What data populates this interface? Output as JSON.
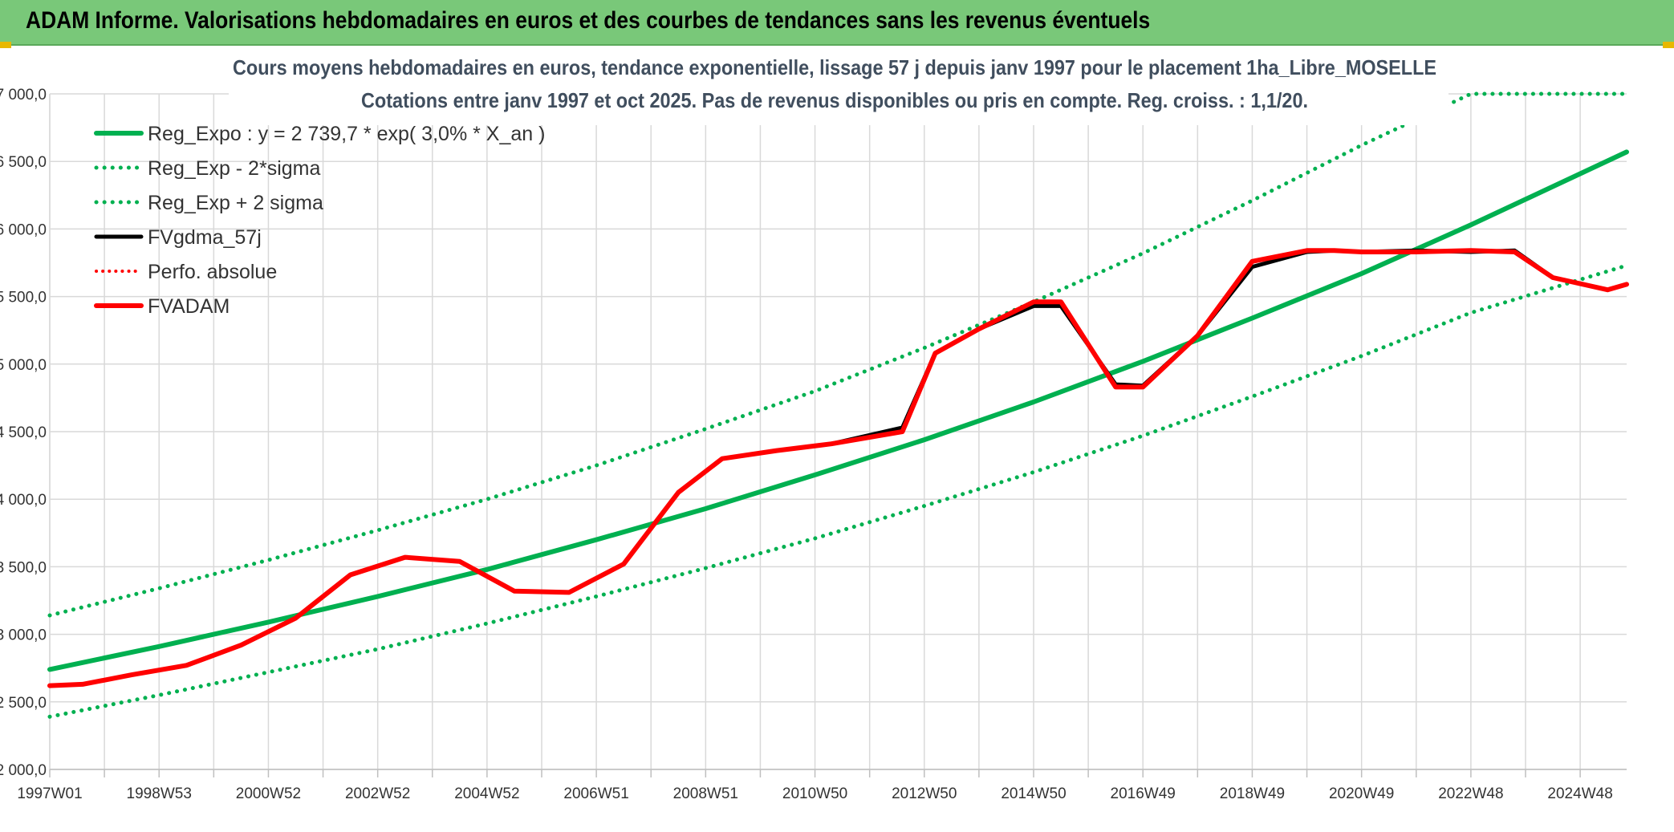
{
  "header": {
    "title": "ADAM Informe. Valorisations hebdomadaires en euros et des courbes de tendances sans les revenus éventuels"
  },
  "colors": {
    "banner": "#79c879",
    "green": "#00b050",
    "red": "#ff0000",
    "black": "#000000"
  },
  "chart_data": {
    "type": "line",
    "title": "Cours moyens hebdomadaires en euros, tendance exponentielle, lissage 57 j depuis janv 1997 pour le placement 1ha_Libre_MOSELLE",
    "subtitle": "Cotations entre janv 1997 et oct 2025. Pas de revenus disponibles ou pris en compte. Reg. croiss. : 1,1/20.",
    "xlabel": "",
    "ylabel": "",
    "ylim": [
      2000,
      7000
    ],
    "xlim": [
      1997.0,
      2025.85
    ],
    "grid": true,
    "legend_position": "top-left",
    "y_ticks": [
      {
        "value": 2000,
        "label": "2 000,0"
      },
      {
        "value": 2500,
        "label": "2 500,0"
      },
      {
        "value": 3000,
        "label": "3 000,0"
      },
      {
        "value": 3500,
        "label": "3 500,0"
      },
      {
        "value": 4000,
        "label": "4 000,0"
      },
      {
        "value": 4500,
        "label": "4 500,0"
      },
      {
        "value": 5000,
        "label": "5 000,0"
      },
      {
        "value": 5500,
        "label": "5 500,0"
      },
      {
        "value": 6000,
        "label": "6 000,0"
      },
      {
        "value": 6500,
        "label": "6 500,0"
      },
      {
        "value": 7000,
        "label": "7 000,0"
      }
    ],
    "x_ticks": [
      {
        "x": 1997.0,
        "label": "1997W01"
      },
      {
        "x": 1999.0,
        "label": "1998W53"
      },
      {
        "x": 2001.0,
        "label": "2000W52"
      },
      {
        "x": 2003.0,
        "label": "2002W52"
      },
      {
        "x": 2005.0,
        "label": "2004W52"
      },
      {
        "x": 2007.0,
        "label": "2006W51"
      },
      {
        "x": 2009.0,
        "label": "2008W51"
      },
      {
        "x": 2011.0,
        "label": "2010W50"
      },
      {
        "x": 2013.0,
        "label": "2012W50"
      },
      {
        "x": 2015.0,
        "label": "2014W50"
      },
      {
        "x": 2017.0,
        "label": "2016W49"
      },
      {
        "x": 2019.0,
        "label": "2018W49"
      },
      {
        "x": 2021.0,
        "label": "2020W49"
      },
      {
        "x": 2023.0,
        "label": "2022W48"
      },
      {
        "x": 2025.0,
        "label": "2024W48"
      }
    ],
    "series": [
      {
        "name": "Reg_Expo : y = 2 739,7 * exp( 3,0% *  X_an )",
        "style": "solid",
        "color": "#00b050",
        "width": 6,
        "x": [
          1997.0,
          1999.0,
          2001.0,
          2003.0,
          2005.0,
          2007.0,
          2009.0,
          2011.0,
          2013.0,
          2015.0,
          2017.0,
          2019.0,
          2021.0,
          2023.0,
          2025.85
        ],
        "values": [
          2740,
          2910,
          3090,
          3280,
          3480,
          3700,
          3930,
          4180,
          4440,
          4720,
          5020,
          5340,
          5670,
          6030,
          6570
        ]
      },
      {
        "name": "Reg_Exp - 2*sigma",
        "style": "dotted",
        "color": "#00b050",
        "width": 5,
        "x": [
          1997.0,
          1999.0,
          2001.0,
          2003.0,
          2005.0,
          2007.0,
          2009.0,
          2011.0,
          2013.0,
          2015.0,
          2017.0,
          2019.0,
          2021.0,
          2023.0,
          2025.85
        ],
        "values": [
          2390,
          2550,
          2720,
          2890,
          3080,
          3280,
          3490,
          3710,
          3950,
          4200,
          4470,
          4760,
          5060,
          5380,
          5730
        ]
      },
      {
        "name": "Reg_Exp + 2 sigma",
        "style": "dotted",
        "color": "#00b050",
        "width": 5,
        "x": [
          1997.0,
          1999.0,
          2001.0,
          2003.0,
          2005.0,
          2007.0,
          2009.0,
          2011.0,
          2013.0,
          2015.0,
          2017.0,
          2019.0,
          2021.0,
          2023.0,
          2025.85
        ],
        "values": [
          3140,
          3340,
          3550,
          3770,
          4000,
          4250,
          4520,
          4800,
          5120,
          5460,
          5820,
          6210,
          6620,
          7000,
          7000
        ]
      },
      {
        "name": "FVgdma_57j",
        "style": "solid",
        "color": "#000000",
        "width": 5,
        "x": [
          1997.0,
          1997.6,
          1998.5,
          1999.5,
          2000.5,
          2001.5,
          2002.5,
          2003.5,
          2004.5,
          2005.5,
          2006.5,
          2007.5,
          2008.5,
          2009.3,
          2010.3,
          2011.3,
          2012.6,
          2013.2,
          2014.0,
          2015.0,
          2015.5,
          2016.5,
          2017.0,
          2018.0,
          2019.0,
          2020.0,
          2020.5,
          2021.0,
          2022.0,
          2023.0,
          2023.8,
          2024.5,
          2025.5,
          2025.85
        ],
        "values": [
          2620,
          2630,
          2700,
          2770,
          2920,
          3120,
          3440,
          3570,
          3540,
          3320,
          3310,
          3520,
          4050,
          4300,
          4360,
          4410,
          4530,
          5080,
          5260,
          5430,
          5430,
          4850,
          4840,
          5210,
          5720,
          5830,
          5840,
          5830,
          5840,
          5830,
          5840,
          5640,
          5550,
          5590
        ]
      },
      {
        "name": "Perfo. absolue",
        "style": "dotted",
        "color": "#ff0000",
        "width": 4,
        "x": [
          1997.0,
          1997.6,
          1998.5,
          1999.5,
          2000.5,
          2001.5,
          2002.5,
          2003.5,
          2004.5,
          2005.5,
          2006.5,
          2007.5,
          2008.5,
          2009.3,
          2010.3,
          2011.3,
          2012.6,
          2013.2,
          2014.0,
          2015.0,
          2015.5,
          2016.5,
          2017.0,
          2018.0,
          2019.0,
          2020.0,
          2020.5,
          2021.0,
          2022.0,
          2023.0,
          2023.8,
          2024.5,
          2025.5,
          2025.85
        ],
        "values": [
          2620,
          2630,
          2700,
          2770,
          2920,
          3120,
          3440,
          3570,
          3540,
          3320,
          3310,
          3520,
          4050,
          4300,
          4360,
          4410,
          4500,
          5080,
          5260,
          5460,
          5460,
          4830,
          4830,
          5210,
          5760,
          5840,
          5840,
          5830,
          5830,
          5840,
          5830,
          5640,
          5550,
          5590
        ]
      },
      {
        "name": "FVADAM",
        "style": "solid",
        "color": "#ff0000",
        "width": 6,
        "x": [
          1997.0,
          1997.6,
          1998.5,
          1999.5,
          2000.5,
          2001.5,
          2002.5,
          2003.5,
          2004.5,
          2005.5,
          2006.5,
          2007.5,
          2008.5,
          2009.3,
          2010.3,
          2011.3,
          2012.6,
          2013.2,
          2014.0,
          2015.0,
          2015.5,
          2016.5,
          2017.0,
          2018.0,
          2019.0,
          2020.0,
          2020.5,
          2021.0,
          2022.0,
          2023.0,
          2023.8,
          2024.5,
          2025.5,
          2025.85
        ],
        "values": [
          2620,
          2630,
          2700,
          2770,
          2920,
          3120,
          3440,
          3570,
          3540,
          3320,
          3310,
          3520,
          4050,
          4300,
          4360,
          4410,
          4500,
          5080,
          5260,
          5460,
          5460,
          4830,
          4830,
          5210,
          5760,
          5840,
          5840,
          5830,
          5830,
          5840,
          5830,
          5640,
          5550,
          5590
        ]
      }
    ]
  }
}
